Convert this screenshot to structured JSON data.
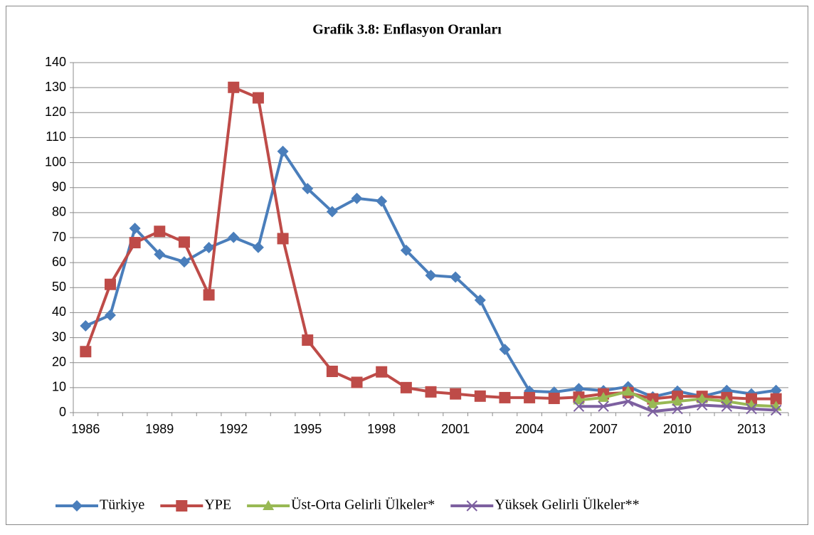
{
  "chart_data": {
    "type": "line",
    "title": "Grafik 3.8: Enflasyon Oranları",
    "categories": [
      "1986",
      null,
      null,
      "1989",
      null,
      null,
      "1992",
      null,
      null,
      "1995",
      null,
      null,
      "1998",
      null,
      null,
      "2001",
      null,
      null,
      "2004",
      null,
      null,
      "2007",
      null,
      null,
      "2010",
      null,
      null,
      "2013",
      null
    ],
    "series": [
      {
        "name": "Türkiye",
        "color": "#4a7ebb",
        "marker": "diamond",
        "values": [
          34.7,
          39,
          73.7,
          63.3,
          60.3,
          66,
          70.1,
          66.1,
          104.5,
          89.6,
          80.4,
          85.7,
          84.6,
          64.9,
          54.9,
          54.2,
          45,
          25.3,
          8.6,
          8.2,
          9.6,
          8.8,
          10.4,
          6.3,
          8.6,
          6.5,
          8.9,
          7.5,
          8.9
        ]
      },
      {
        "name": "YPE",
        "color": "#be4b48",
        "marker": "square",
        "values": [
          24.4,
          51.3,
          68,
          72.5,
          68.2,
          47.1,
          130.1,
          125.9,
          69.6,
          29,
          16.5,
          12.1,
          16.3,
          10,
          8.3,
          7.5,
          6.6,
          6,
          6,
          5.7,
          6.2,
          7.5,
          8,
          5.5,
          6.5,
          6.5,
          6,
          5.5,
          5.5
        ]
      },
      {
        "name": "Üst-Orta Gelirli Ülkeler*",
        "color": "#98b954",
        "marker": "triangle",
        "values": [
          null,
          null,
          null,
          null,
          null,
          null,
          null,
          null,
          null,
          null,
          null,
          null,
          null,
          null,
          null,
          null,
          null,
          null,
          null,
          null,
          5,
          6,
          8.5,
          3.5,
          4.5,
          5.5,
          4.5,
          3,
          2.5
        ]
      },
      {
        "name": "Yüksek Gelirli Ülkeler**",
        "color": "#7d60a0",
        "marker": "x",
        "values": [
          null,
          null,
          null,
          null,
          null,
          null,
          null,
          null,
          null,
          null,
          null,
          null,
          null,
          null,
          null,
          null,
          null,
          null,
          null,
          null,
          2.5,
          2.5,
          4.5,
          0.5,
          1.5,
          3,
          2.5,
          1.5,
          1
        ]
      }
    ],
    "ylim": [
      0,
      140
    ],
    "yticks": [
      0,
      10,
      20,
      30,
      40,
      50,
      60,
      70,
      80,
      90,
      100,
      110,
      120,
      130,
      140
    ],
    "grid": true,
    "legend": "bottom"
  }
}
